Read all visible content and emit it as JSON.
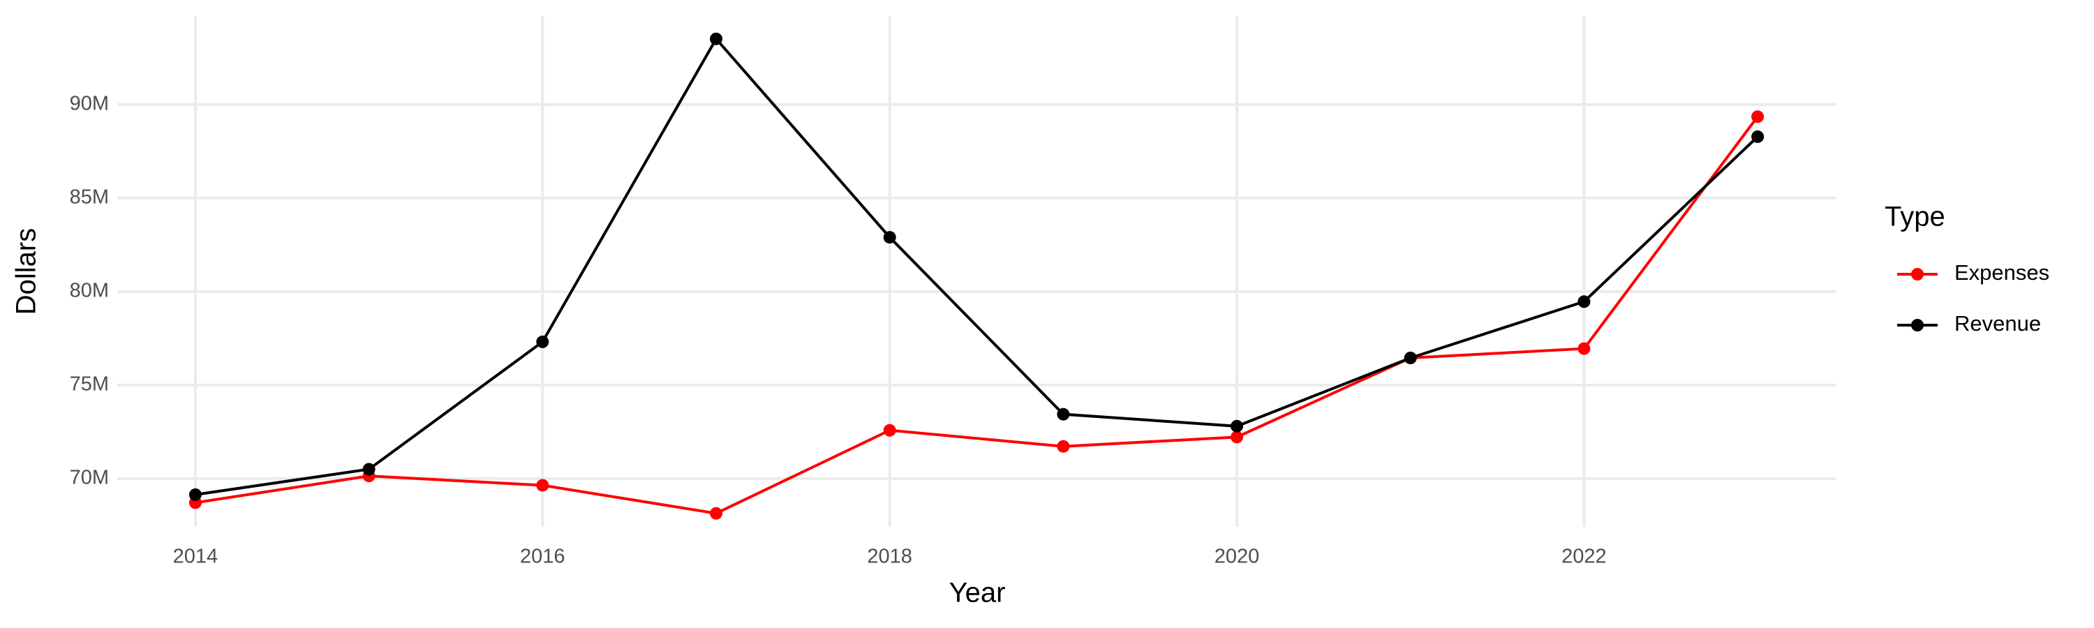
{
  "chart_data": {
    "type": "line",
    "x_label": "Year",
    "y_label": "Dollars",
    "x": [
      2014,
      2015,
      2016,
      2017,
      2018,
      2019,
      2020,
      2021,
      2022,
      2023
    ],
    "series": [
      {
        "name": "Expenses",
        "color": "#ff0000",
        "values": [
          68710000,
          70140000,
          69640000,
          68140000,
          72580000,
          71720000,
          72220000,
          76450000,
          76950000,
          89350000
        ]
      },
      {
        "name": "Revenue",
        "color": "#000000",
        "values": [
          69140000,
          70500000,
          77310000,
          93510000,
          82900000,
          73440000,
          72800000,
          76450000,
          79460000,
          88280000
        ]
      }
    ],
    "xlim": [
      2013.55,
      2023.45
    ],
    "xticks": [
      2014,
      2016,
      2018,
      2020,
      2022
    ],
    "ylim": [
      67420000,
      94730000
    ],
    "yticks": [
      {
        "value": 70000000,
        "label": "70M"
      },
      {
        "value": 75000000,
        "label": "75M"
      },
      {
        "value": 80000000,
        "label": "80M"
      },
      {
        "value": 85000000,
        "label": "85M"
      },
      {
        "value": 90000000,
        "label": "90M"
      }
    ],
    "grid": true,
    "legend_title": "Type",
    "legend_position": "right"
  }
}
